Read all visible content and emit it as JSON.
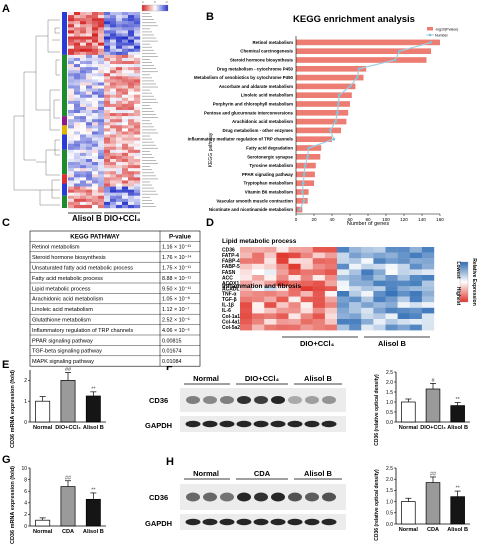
{
  "panels": {
    "A": "A",
    "B": "B",
    "C": "C",
    "D": "D",
    "E": "E",
    "F": "F",
    "G": "G",
    "H": "H"
  },
  "A": {
    "groups": [
      "Alisol B",
      "DIO+CCl₄"
    ],
    "colorbar_ticks": [
      "2",
      "0",
      "-2"
    ],
    "colors": {
      "high": "#d42424",
      "mid": "#ffffff",
      "low": "#2432c8"
    }
  },
  "chart_data": [
    {
      "id": "B",
      "type": "bar",
      "title": "KEGG enrichment analysis",
      "xlabel": "Number of genes",
      "ylabel": "KEGG pathway",
      "legend": [
        "-log10(Pvalue)",
        "Number"
      ],
      "legend_placement": "top-right",
      "xlim": [
        0,
        160
      ],
      "xticks": [
        "0",
        "20",
        "40",
        "60",
        "80",
        "100",
        "120",
        "140",
        "160"
      ],
      "categories": [
        "Retinol metabolism",
        "Chemical carcinogenesis",
        "Steroid hormone biosynthesis",
        "Drug metabolism - cytochrome P450",
        "Metabolism of xenobiotics by cytochrome P450",
        "Ascorbate and aldarate metabolism",
        "Linoleic acid metabolism",
        "Porphyrin and chlorophyll metabolism",
        "Pentose and glucuronate interconversions",
        "Arachidonic acid metabolism",
        "Drug metabolism - other enzymes",
        "Inflammatory mediator regulation of TRP channels",
        "Fatty acid degradation",
        "Serotonergic synapse",
        "Tyrosine metabolism",
        "PPAR signaling pathway",
        "Tryptophan metabolism",
        "Vitamin B6 metabolism",
        "Vascular smooth muscle contraction",
        "Nicotinate and nicotinamide metabolism"
      ],
      "series": [
        {
          "name": "-log10(Pvalue)",
          "values": [
            160,
            150,
            145,
            78,
            75,
            66,
            62,
            60,
            58,
            56,
            50,
            40,
            28,
            27,
            22,
            21,
            20,
            14,
            13,
            7
          ]
        },
        {
          "name": "Number",
          "values": [
            150,
            115,
            110,
            70,
            68,
            60,
            48,
            47,
            46,
            44,
            38,
            42,
            14,
            13,
            10,
            9,
            8,
            7,
            9,
            4
          ]
        }
      ],
      "colors": {
        "bar": "#ed7d72",
        "line": "#9fd0e4",
        "marker": "#7fc0dc"
      }
    },
    {
      "id": "E",
      "type": "bar",
      "ylabel": "CD36 mRNA expression (fold)",
      "categories": [
        "Normal",
        "DIO+CCl₄",
        "Alisol B"
      ],
      "values": [
        1.0,
        2.0,
        1.25
      ],
      "errors": [
        0.22,
        0.38,
        0.2
      ],
      "ylim": [
        0,
        2.5
      ],
      "yticks": [
        "0",
        "1",
        "2"
      ],
      "marks": [
        "",
        "##",
        "**"
      ],
      "fills": [
        "#ffffff",
        "#9a9a9a",
        "#151515"
      ]
    },
    {
      "id": "F",
      "type": "bar",
      "ylabel": "CD36 (relative optical density)",
      "categories": [
        "Normal",
        "DIO+CCl₄",
        "Alisol B"
      ],
      "values": [
        1.0,
        1.65,
        0.82
      ],
      "errors": [
        0.15,
        0.28,
        0.15
      ],
      "ylim": [
        0,
        2.5
      ],
      "yticks": [
        "0.0",
        "0.5",
        "1.0",
        "1.5",
        "2.0",
        "2.5"
      ],
      "marks": [
        "",
        "#",
        "**"
      ],
      "fills": [
        "#ffffff",
        "#9a9a9a",
        "#151515"
      ]
    },
    {
      "id": "G",
      "type": "bar",
      "ylabel": "CD36 mRNA expression (fold)",
      "categories": [
        "Normal",
        "CDA",
        "Alisol B"
      ],
      "values": [
        1.0,
        6.8,
        4.6
      ],
      "errors": [
        0.4,
        1.0,
        1.1
      ],
      "ylim": [
        0,
        10
      ],
      "yticks": [
        "0",
        "2",
        "4",
        "6",
        "8",
        "10"
      ],
      "marks": [
        "",
        "##",
        "**"
      ],
      "fills": [
        "#ffffff",
        "#9a9a9a",
        "#151515"
      ]
    },
    {
      "id": "H",
      "type": "bar",
      "ylabel": "CD36 (relative optical density)",
      "categories": [
        "Normal",
        "CDA",
        "Alisol B"
      ],
      "values": [
        1.0,
        1.85,
        1.22
      ],
      "errors": [
        0.15,
        0.25,
        0.25
      ],
      "ylim": [
        0,
        2.5
      ],
      "yticks": [
        "0.0",
        "0.5",
        "1.0",
        "1.5",
        "2.0",
        "2.5"
      ],
      "marks": [
        "",
        "##",
        "**"
      ],
      "fills": [
        "#ffffff",
        "#9a9a9a",
        "#151515"
      ]
    }
  ],
  "C": {
    "headers": [
      "KEGG PATHWAY",
      "P-value"
    ],
    "rows": [
      {
        "name": "Retinol metabolism",
        "p": "1.16 × 10⁻²¹"
      },
      {
        "name": "Steroid hormone biosynthesis",
        "p": "1.76 × 10⁻¹⁴"
      },
      {
        "name": "Unsaturated fatty acid metabolic process",
        "p": "1.75 × 10⁻¹¹"
      },
      {
        "name": "Fatty acid metabolic process",
        "p": "8.88 × 10⁻¹¹"
      },
      {
        "name": "Lipid metabolic process",
        "p": "9.50 × 10⁻¹¹"
      },
      {
        "name": "Arachidonic acid metabolism",
        "p": "1.05 × 10⁻⁸"
      },
      {
        "name": "Linoleic acid metabolism",
        "p": "1.12 × 10⁻⁷"
      },
      {
        "name": "Glutathione metabolism",
        "p": "2.52 × 10⁻⁶"
      },
      {
        "name": "Inflammatory regulation of TRP channels",
        "p": "4.06 × 10⁻⁶"
      },
      {
        "name": "PPAR signaling pathway",
        "p": "0.00815"
      },
      {
        "name": "TGF-beta signaling pathway",
        "p": "0.01674"
      },
      {
        "name": "MAPK signaling pathway",
        "p": "0.01084"
      }
    ]
  },
  "D": {
    "lipid_title": "Lipid metabolic process",
    "lipid_genes": [
      "CD36",
      "FATP-4",
      "FABP-4",
      "FABP-5",
      "FASN",
      "ACC",
      "ACOX1",
      "ACADL"
    ],
    "inflam_title": "Inflammation and fibrosis",
    "inflam_genes": [
      "TNF-α",
      "TGF-β",
      "IL-1β",
      "IL-6",
      "Col-1a1",
      "Col-4a1",
      "Col-5a2"
    ],
    "groups": [
      "DIO+CCl₄",
      "Alisol B"
    ],
    "legend_title": "Relative Expression",
    "legend_top": "Lowest",
    "legend_bottom": "Highest"
  },
  "blots": {
    "F": {
      "groups": [
        "Normal",
        "DIO+CCl₄",
        "Alisol B"
      ],
      "bands": [
        "CD36",
        "GAPDH"
      ]
    },
    "H": {
      "groups": [
        "Normal",
        "CDA",
        "Alisol B"
      ],
      "bands": [
        "CD36",
        "GAPDH"
      ]
    }
  }
}
